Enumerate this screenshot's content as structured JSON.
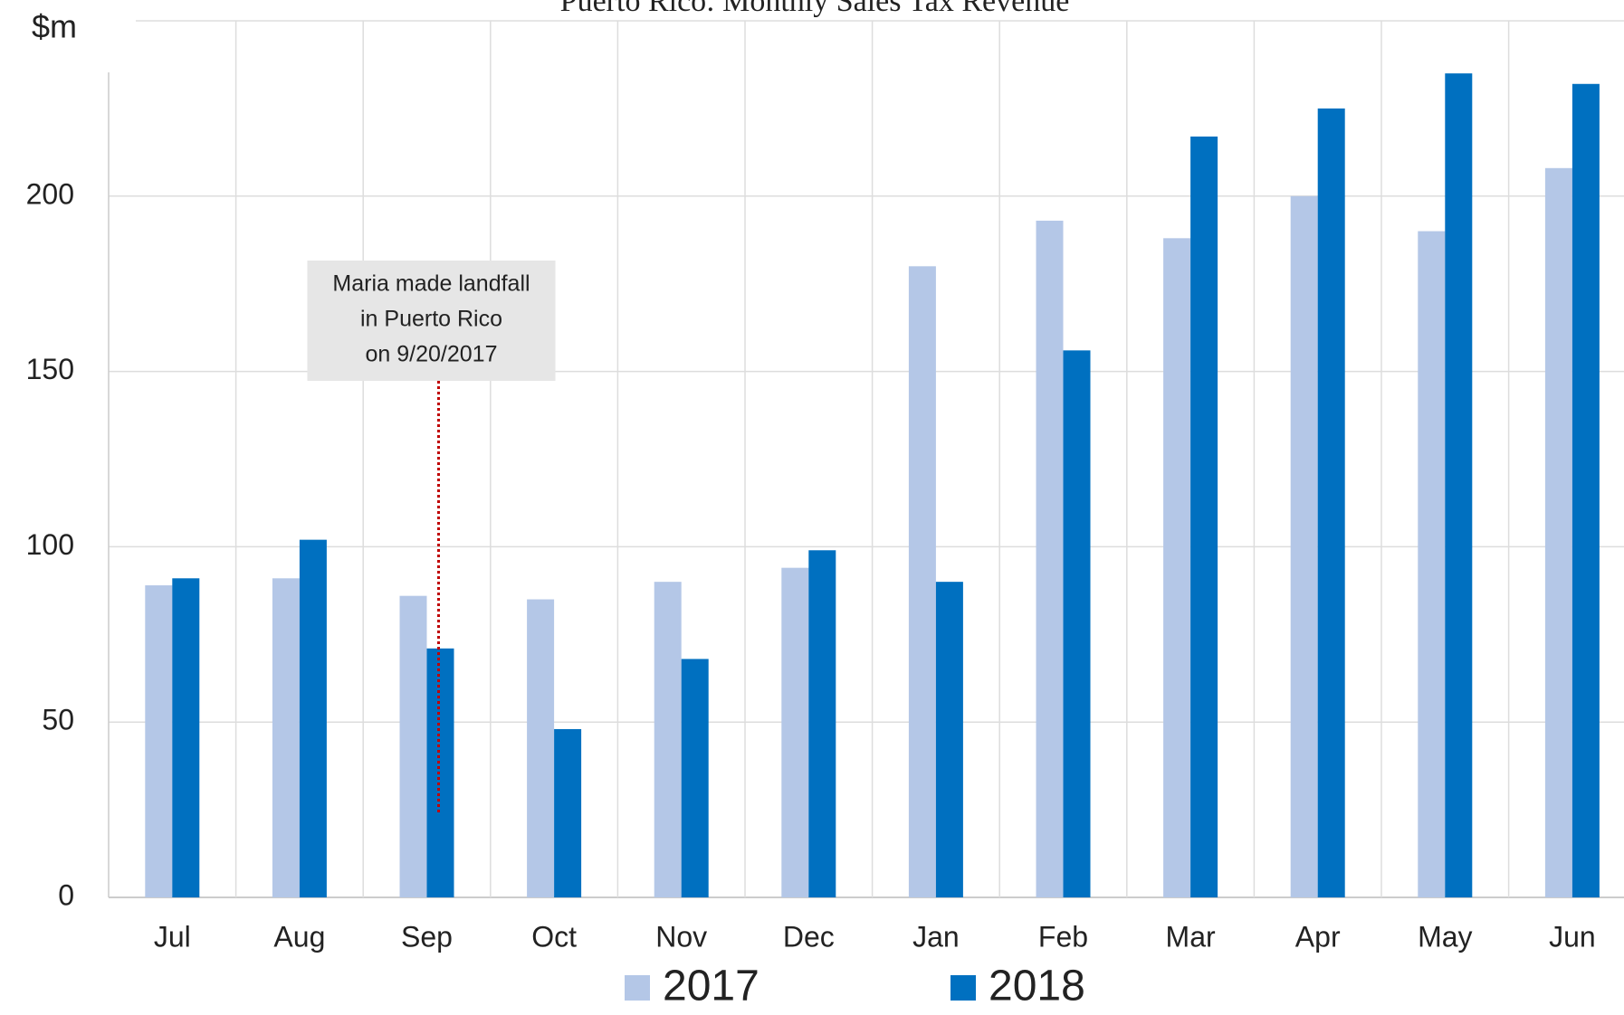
{
  "chart_data": {
    "type": "bar",
    "title": "Puerto Rico: Monthly Sales Tax Revenue",
    "y_label": "$m",
    "categories": [
      "Jul",
      "Aug",
      "Sep",
      "Oct",
      "Nov",
      "Dec",
      "Jan",
      "Feb",
      "Mar",
      "Apr",
      "May",
      "Jun"
    ],
    "series": [
      {
        "name": "2017",
        "color": "#b4c7e7",
        "values": [
          89,
          91,
          86,
          85,
          90,
          94,
          180,
          193,
          188,
          200,
          190,
          208
        ]
      },
      {
        "name": "2018",
        "color": "#0070c0",
        "values": [
          91,
          102,
          71,
          48,
          68,
          99,
          90,
          156,
          217,
          225,
          235,
          232
        ]
      }
    ],
    "ylim": [
      0,
      250
    ],
    "yticks": [
      0,
      50,
      100,
      150,
      200
    ],
    "grid": true,
    "legend": "bottom",
    "annotation": {
      "lines": [
        "Maria made landfall",
        "in Puerto Rico",
        "on 9/20/2017"
      ],
      "category": "Sep"
    }
  }
}
